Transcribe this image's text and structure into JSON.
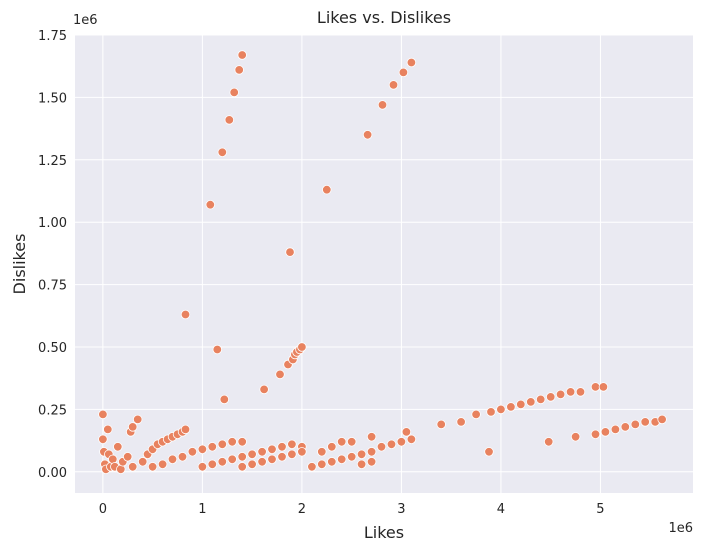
{
  "chart_data": {
    "type": "scatter",
    "title": "Likes vs. Dislikes",
    "xlabel": "Likes",
    "ylabel": "Dislikes",
    "x_multiplier_label": "1e6",
    "y_multiplier_label": "1e6",
    "xlim": [
      -0.28,
      5.93
    ],
    "ylim": [
      -0.085,
      1.75
    ],
    "x_ticks": [
      0,
      1,
      2,
      3,
      4,
      5
    ],
    "x_tick_labels": [
      "0",
      "1",
      "2",
      "3",
      "4",
      "5"
    ],
    "y_ticks": [
      0,
      0.25,
      0.5,
      0.75,
      1.0,
      1.25,
      1.5,
      1.75
    ],
    "y_tick_labels": [
      "0.00",
      "0.25",
      "0.50",
      "0.75",
      "1.00",
      "1.25",
      "1.50",
      "1.75"
    ],
    "grid": true,
    "background_color": "#eaeaf2",
    "point_color": "#e8825f",
    "point_edge_color": "#ffffff",
    "x_unit": "millions",
    "y_unit": "millions",
    "points": [
      [
        0.0,
        0.23
      ],
      [
        0.0,
        0.13
      ],
      [
        0.01,
        0.08
      ],
      [
        0.02,
        0.03
      ],
      [
        0.03,
        0.01
      ],
      [
        0.05,
        0.17
      ],
      [
        0.06,
        0.07
      ],
      [
        0.08,
        0.02
      ],
      [
        0.1,
        0.05
      ],
      [
        0.12,
        0.02
      ],
      [
        0.15,
        0.1
      ],
      [
        0.18,
        0.01
      ],
      [
        0.2,
        0.04
      ],
      [
        0.25,
        0.06
      ],
      [
        0.28,
        0.16
      ],
      [
        0.3,
        0.18
      ],
      [
        0.35,
        0.21
      ],
      [
        0.3,
        0.02
      ],
      [
        0.4,
        0.04
      ],
      [
        0.45,
        0.07
      ],
      [
        0.5,
        0.09
      ],
      [
        0.55,
        0.11
      ],
      [
        0.6,
        0.12
      ],
      [
        0.65,
        0.13
      ],
      [
        0.7,
        0.14
      ],
      [
        0.75,
        0.15
      ],
      [
        0.8,
        0.16
      ],
      [
        0.83,
        0.17
      ],
      [
        0.5,
        0.02
      ],
      [
        0.6,
        0.03
      ],
      [
        0.7,
        0.05
      ],
      [
        0.8,
        0.06
      ],
      [
        0.9,
        0.08
      ],
      [
        1.0,
        0.09
      ],
      [
        1.1,
        0.1
      ],
      [
        1.2,
        0.11
      ],
      [
        1.3,
        0.12
      ],
      [
        1.4,
        0.12
      ],
      [
        1.0,
        0.02
      ],
      [
        1.1,
        0.03
      ],
      [
        1.2,
        0.04
      ],
      [
        1.3,
        0.05
      ],
      [
        1.4,
        0.06
      ],
      [
        1.5,
        0.07
      ],
      [
        1.6,
        0.08
      ],
      [
        1.7,
        0.09
      ],
      [
        1.8,
        0.1
      ],
      [
        1.9,
        0.11
      ],
      [
        2.0,
        0.1
      ],
      [
        1.4,
        0.02
      ],
      [
        1.5,
        0.03
      ],
      [
        1.6,
        0.04
      ],
      [
        1.7,
        0.05
      ],
      [
        1.8,
        0.06
      ],
      [
        1.9,
        0.07
      ],
      [
        2.0,
        0.08
      ],
      [
        2.1,
        0.02
      ],
      [
        2.2,
        0.03
      ],
      [
        2.3,
        0.04
      ],
      [
        2.4,
        0.05
      ],
      [
        2.5,
        0.06
      ],
      [
        2.6,
        0.07
      ],
      [
        2.7,
        0.08
      ],
      [
        2.8,
        0.1
      ],
      [
        2.9,
        0.11
      ],
      [
        3.0,
        0.12
      ],
      [
        3.1,
        0.13
      ],
      [
        2.2,
        0.08
      ],
      [
        2.3,
        0.1
      ],
      [
        2.4,
        0.12
      ],
      [
        2.5,
        0.12
      ],
      [
        2.7,
        0.14
      ],
      [
        2.6,
        0.03
      ],
      [
        2.7,
        0.04
      ],
      [
        3.05,
        0.16
      ],
      [
        3.4,
        0.19
      ],
      [
        3.6,
        0.2
      ],
      [
        3.75,
        0.23
      ],
      [
        3.9,
        0.24
      ],
      [
        4.0,
        0.25
      ],
      [
        4.1,
        0.26
      ],
      [
        4.2,
        0.27
      ],
      [
        4.3,
        0.28
      ],
      [
        4.4,
        0.29
      ],
      [
        4.5,
        0.3
      ],
      [
        4.6,
        0.31
      ],
      [
        4.7,
        0.32
      ],
      [
        4.8,
        0.32
      ],
      [
        4.95,
        0.34
      ],
      [
        5.03,
        0.34
      ],
      [
        4.48,
        0.12
      ],
      [
        4.75,
        0.14
      ],
      [
        4.95,
        0.15
      ],
      [
        5.05,
        0.16
      ],
      [
        5.15,
        0.17
      ],
      [
        5.25,
        0.18
      ],
      [
        5.35,
        0.19
      ],
      [
        5.45,
        0.2
      ],
      [
        5.55,
        0.2
      ],
      [
        5.62,
        0.21
      ],
      [
        3.88,
        0.08
      ],
      [
        0.83,
        0.63
      ],
      [
        1.15,
        0.49
      ],
      [
        1.08,
        1.07
      ],
      [
        1.2,
        1.28
      ],
      [
        1.27,
        1.41
      ],
      [
        1.32,
        1.52
      ],
      [
        1.37,
        1.61
      ],
      [
        1.4,
        1.67
      ],
      [
        1.22,
        0.29
      ],
      [
        1.62,
        0.33
      ],
      [
        1.78,
        0.39
      ],
      [
        1.86,
        0.43
      ],
      [
        1.91,
        0.45
      ],
      [
        1.93,
        0.47
      ],
      [
        1.95,
        0.48
      ],
      [
        1.98,
        0.49
      ],
      [
        2.0,
        0.5
      ],
      [
        1.88,
        0.88
      ],
      [
        2.25,
        1.13
      ],
      [
        2.66,
        1.35
      ],
      [
        2.81,
        1.47
      ],
      [
        2.92,
        1.55
      ],
      [
        3.02,
        1.6
      ],
      [
        3.1,
        1.64
      ]
    ]
  }
}
